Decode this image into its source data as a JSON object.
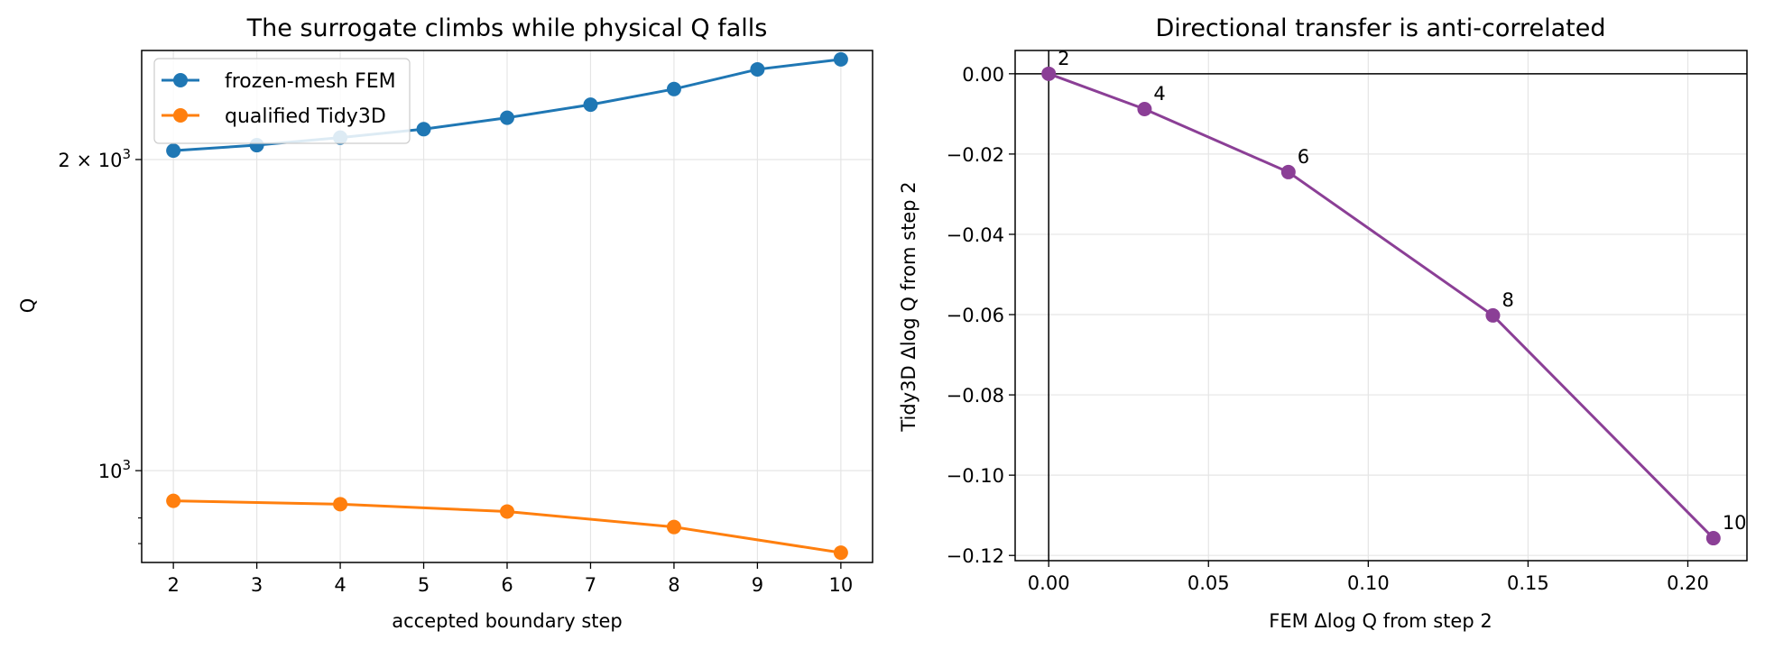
{
  "colors": {
    "fem": "#1f77b4",
    "tidy3d": "#ff7f0e",
    "transfer": "#8b3f96",
    "grid": "#e5e5e5",
    "axis": "#000000"
  },
  "chart_data": [
    {
      "type": "line",
      "title": "The surrogate climbs while physical Q falls",
      "xlabel": "accepted boundary step",
      "ylabel": "Q",
      "yscale": "log",
      "ylim": [
        815,
        2550
      ],
      "xlim": [
        1.62,
        10.38
      ],
      "x_ticks": [
        "2",
        "3",
        "4",
        "5",
        "6",
        "7",
        "8",
        "9",
        "10"
      ],
      "y_tick_labels": [
        "2 × 10",
        "10"
      ],
      "y_tick_exponents": [
        "3",
        "3"
      ],
      "grid": true,
      "legend_position": "top-left",
      "series": [
        {
          "name": "frozen-mesh FEM",
          "x": [
            2,
            3,
            4,
            5,
            6,
            7,
            8,
            9,
            10
          ],
          "y": [
            2040,
            2065,
            2100,
            2140,
            2195,
            2260,
            2340,
            2445,
            2500
          ]
        },
        {
          "name": "qualified Tidy3D",
          "x": [
            2,
            4,
            6,
            8,
            10
          ],
          "y": [
            935,
            928,
            913,
            882,
            833
          ]
        }
      ]
    },
    {
      "type": "scatter",
      "title": "Directional transfer is anti-correlated",
      "xlabel": "FEM Δlog Q from step 2",
      "ylabel": "Tidy3D Δlog Q from step 2",
      "xlim": [
        -0.0105,
        0.2185
      ],
      "ylim": [
        -0.1213,
        0.0058
      ],
      "x_ticks": [
        "0.00",
        "0.05",
        "0.10",
        "0.15",
        "0.20"
      ],
      "y_ticks": [
        "0.00",
        "−0.02",
        "−0.04",
        "−0.06",
        "−0.08",
        "−0.10",
        "−0.12"
      ],
      "grid": true,
      "reference_lines": {
        "x": 0,
        "y": 0
      },
      "points": [
        {
          "label": "2",
          "x": 0.0,
          "y": 0.0
        },
        {
          "label": "4",
          "x": 0.03,
          "y": -0.0088
        },
        {
          "label": "6",
          "x": 0.075,
          "y": -0.0245
        },
        {
          "label": "8",
          "x": 0.139,
          "y": -0.0602
        },
        {
          "label": "10",
          "x": 0.208,
          "y": -0.1157
        }
      ]
    }
  ]
}
